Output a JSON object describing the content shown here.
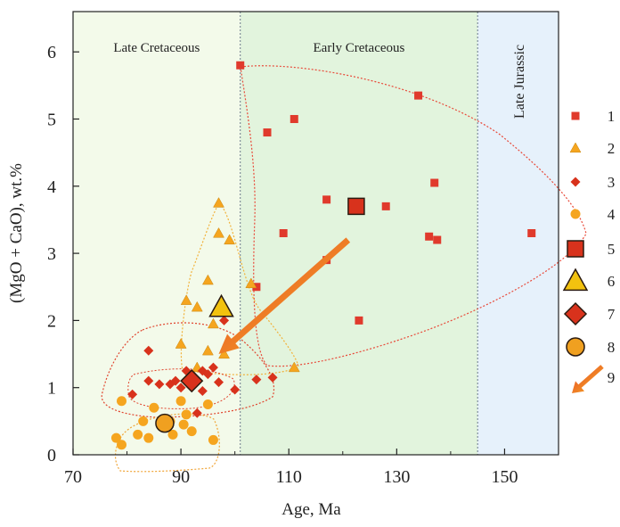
{
  "chart_data": {
    "type": "scatter",
    "title": "",
    "xlabel": "Age, Ma",
    "ylabel": "(MgO + CaO), wt.%",
    "xlim": [
      70,
      160
    ],
    "ylim": [
      0,
      6.6
    ],
    "x_ticks": [
      70,
      90,
      110,
      130,
      150
    ],
    "y_ticks": [
      0,
      1,
      2,
      3,
      4,
      5,
      6
    ],
    "grid": false,
    "legend_position": "right",
    "regions": [
      {
        "label": "Late Cretaceous",
        "x": [
          70,
          101
        ],
        "color": "#f3faea"
      },
      {
        "label": "Early Cretaceous",
        "x": [
          101,
          145
        ],
        "color": "#e2f4dd"
      },
      {
        "label": "Late Jurassic",
        "x": [
          145,
          160
        ],
        "color": "#e6f1fb"
      }
    ],
    "series": [
      {
        "name": "1",
        "marker": "square",
        "color": "#e03a2c",
        "points": [
          [
            101,
            5.8
          ],
          [
            106,
            4.8
          ],
          [
            109,
            3.3
          ],
          [
            111,
            5.0
          ],
          [
            117,
            3.8
          ],
          [
            117,
            2.9
          ],
          [
            128,
            3.7
          ],
          [
            134,
            5.35
          ],
          [
            136,
            3.25
          ],
          [
            137,
            4.05
          ],
          [
            137.5,
            3.2
          ],
          [
            155,
            3.3
          ],
          [
            123,
            2.0
          ],
          [
            104,
            2.5
          ]
        ]
      },
      {
        "name": "2",
        "marker": "triangle",
        "color": "#f5a51f",
        "points": [
          [
            97,
            3.75
          ],
          [
            97,
            3.3
          ],
          [
            99,
            3.2
          ],
          [
            95,
            2.6
          ],
          [
            91,
            2.3
          ],
          [
            93,
            2.2
          ],
          [
            90,
            1.65
          ],
          [
            95,
            1.55
          ],
          [
            98,
            1.5
          ],
          [
            96,
            1.95
          ],
          [
            103,
            2.55
          ],
          [
            111,
            1.3
          ],
          [
            93,
            1.3
          ]
        ]
      },
      {
        "name": "3",
        "marker": "diamond",
        "color": "#d8321c",
        "points": [
          [
            84,
            1.55
          ],
          [
            84,
            1.1
          ],
          [
            81,
            0.9
          ],
          [
            86,
            1.05
          ],
          [
            88,
            1.05
          ],
          [
            89,
            1.1
          ],
          [
            90,
            1.0
          ],
          [
            91,
            1.25
          ],
          [
            92,
            1.2
          ],
          [
            94,
            1.25
          ],
          [
            96,
            1.3
          ],
          [
            97,
            1.08
          ],
          [
            93,
            0.62
          ],
          [
            94,
            0.95
          ],
          [
            100,
            0.97
          ],
          [
            104,
            1.12
          ],
          [
            107,
            1.15
          ],
          [
            98,
            2.0
          ],
          [
            95,
            1.2
          ]
        ]
      },
      {
        "name": "4",
        "marker": "circle",
        "color": "#f5a51f",
        "points": [
          [
            79,
            0.8
          ],
          [
            78,
            0.25
          ],
          [
            79,
            0.15
          ],
          [
            82,
            0.3
          ],
          [
            83,
            0.5
          ],
          [
            84,
            0.25
          ],
          [
            85,
            0.7
          ],
          [
            88,
            0.5
          ],
          [
            88.5,
            0.3
          ],
          [
            90,
            0.8
          ],
          [
            90.5,
            0.45
          ],
          [
            91,
            0.6
          ],
          [
            95,
            0.75
          ],
          [
            96,
            0.22
          ],
          [
            92,
            0.35
          ]
        ]
      },
      {
        "name": "5",
        "marker": "square-large",
        "color": "#d8321c",
        "points": [
          [
            122.5,
            3.7
          ]
        ]
      },
      {
        "name": "6",
        "marker": "triangle-large",
        "color": "#f2c20f",
        "points": [
          [
            97.5,
            2.2
          ]
        ]
      },
      {
        "name": "7",
        "marker": "diamond-large",
        "color": "#d8321c",
        "points": [
          [
            92,
            1.1
          ]
        ]
      },
      {
        "name": "8",
        "marker": "circle-large",
        "color": "#f0a020",
        "points": [
          [
            87,
            0.47
          ]
        ]
      },
      {
        "name": "9",
        "marker": "arrow",
        "color": "#e8462c",
        "points": []
      }
    ],
    "arrow": {
      "from": [
        121,
        3.2
      ],
      "to": [
        97,
        1.5
      ],
      "color_start": "#e8462c",
      "color_end": "#f5b21f"
    }
  }
}
